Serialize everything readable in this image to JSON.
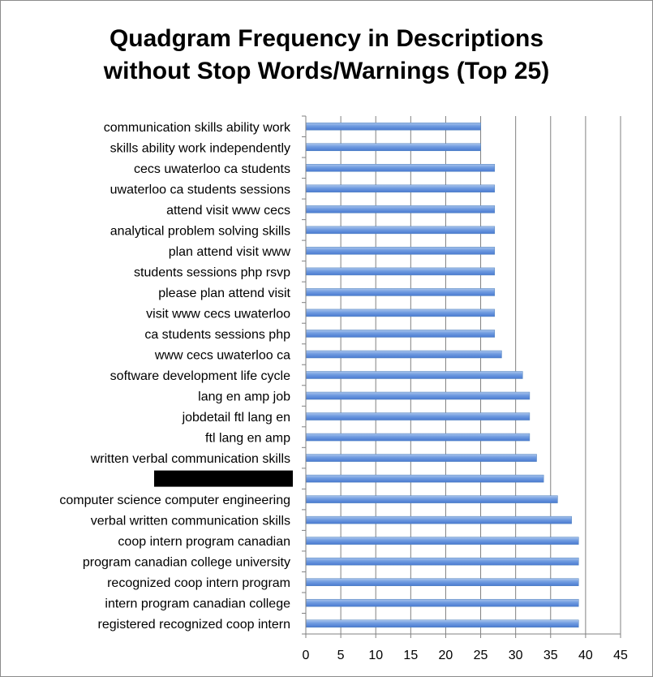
{
  "chart_data": {
    "type": "bar",
    "orientation": "horizontal",
    "title_line1": "Quadgram Frequency in Descriptions",
    "title_line2": "without Stop Words/Warnings (Top 25)",
    "xlabel": "",
    "ylabel": "",
    "xlim": [
      0,
      45
    ],
    "xticks": [
      "0",
      "5",
      "10",
      "15",
      "20",
      "25",
      "30",
      "35",
      "40",
      "45"
    ],
    "grid": "vertical",
    "bar_color": "#4f81bd",
    "categories": [
      "communication skills ability work",
      "skills ability work independently",
      "cecs uwaterloo ca students",
      "uwaterloo ca students sessions",
      "attend visit www cecs",
      "analytical problem solving skills",
      "plan attend visit www",
      "students sessions php rsvp",
      "please plan attend visit",
      "visit www cecs uwaterloo",
      "ca students sessions php",
      "www cecs uwaterloo ca",
      "software development life cycle",
      "lang en amp job",
      "jobdetail ftl lang en",
      "ftl lang en amp",
      "written verbal communication skills",
      "",
      "computer science computer engineering",
      "verbal written communication skills",
      "coop intern program canadian",
      "program canadian college university",
      "recognized coop intern program",
      "intern program canadian college",
      "registered recognized coop intern"
    ],
    "redacted_index": 17,
    "values": [
      25,
      25,
      27,
      27,
      27,
      27,
      27,
      27,
      27,
      27,
      27,
      28,
      31,
      32,
      32,
      32,
      33,
      34,
      36,
      38,
      39,
      39,
      39,
      39,
      39
    ]
  }
}
